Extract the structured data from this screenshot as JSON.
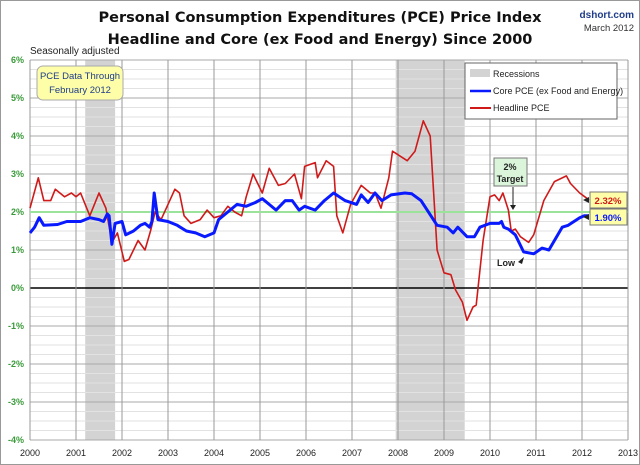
{
  "chart_data": {
    "type": "line",
    "title": "Personal Consumption Expenditures (PCE) Price Index",
    "subtitle": "Headline and Core (ex Food and Energy) Since 2000",
    "source": "dshort.com",
    "date": "March 2012",
    "note": "Seasonally adjusted",
    "data_box": [
      "PCE Data Through",
      "February 2012"
    ],
    "xlim": [
      2000,
      2013
    ],
    "ylim": [
      -4,
      6
    ],
    "x_ticks": [
      "2000",
      "2001",
      "2002",
      "2003",
      "2004",
      "2005",
      "2006",
      "2007",
      "2008",
      "2009",
      "2010",
      "2011",
      "2012",
      "2013"
    ],
    "y_ticks": [
      "6%",
      "5%",
      "4%",
      "3%",
      "2%",
      "1%",
      "0%",
      "-1%",
      "-2%",
      "-3%",
      "-4%"
    ],
    "grid": true,
    "legend_position": "top-right",
    "legend": [
      "Recessions",
      "Core PCE (ex Food and Energy)",
      "Headline PCE"
    ],
    "recessions": [
      [
        2001.2,
        2001.85
      ],
      [
        2007.95,
        2009.45
      ]
    ],
    "target_line": 2,
    "annotations": {
      "target": [
        "2%",
        "Target"
      ],
      "low": "Low",
      "headline_last": "2.32%",
      "core_last": "1.90%"
    },
    "colors": {
      "core": "#0a1aff",
      "headline": "#d01a1a",
      "target": "#9be39b",
      "recession": "#d3d3d3",
      "ytick": "#3a9a3a"
    },
    "series": [
      {
        "name": "Core PCE (ex Food and Energy)",
        "points": [
          [
            2000.0,
            1.45
          ],
          [
            2000.1,
            1.6
          ],
          [
            2000.2,
            1.85
          ],
          [
            2000.3,
            1.65
          ],
          [
            2000.6,
            1.67
          ],
          [
            2000.8,
            1.75
          ],
          [
            2001.1,
            1.75
          ],
          [
            2001.3,
            1.85
          ],
          [
            2001.5,
            1.8
          ],
          [
            2001.6,
            1.75
          ],
          [
            2001.68,
            1.95
          ],
          [
            2001.72,
            1.9
          ],
          [
            2001.78,
            1.15
          ],
          [
            2001.85,
            1.7
          ],
          [
            2002.0,
            1.75
          ],
          [
            2002.08,
            1.4
          ],
          [
            2002.25,
            1.5
          ],
          [
            2002.4,
            1.65
          ],
          [
            2002.5,
            1.7
          ],
          [
            2002.6,
            1.6
          ],
          [
            2002.65,
            1.75
          ],
          [
            2002.7,
            2.5
          ],
          [
            2002.78,
            1.8
          ],
          [
            2003.0,
            1.75
          ],
          [
            2003.2,
            1.65
          ],
          [
            2003.4,
            1.5
          ],
          [
            2003.6,
            1.45
          ],
          [
            2003.8,
            1.35
          ],
          [
            2004.0,
            1.45
          ],
          [
            2004.1,
            1.8
          ],
          [
            2004.3,
            2.0
          ],
          [
            2004.5,
            2.2
          ],
          [
            2004.7,
            2.15
          ],
          [
            2004.9,
            2.25
          ],
          [
            2005.05,
            2.35
          ],
          [
            2005.2,
            2.2
          ],
          [
            2005.35,
            2.05
          ],
          [
            2005.55,
            2.3
          ],
          [
            2005.7,
            2.3
          ],
          [
            2005.85,
            2.05
          ],
          [
            2005.97,
            2.15
          ],
          [
            2006.2,
            2.05
          ],
          [
            2006.4,
            2.3
          ],
          [
            2006.6,
            2.5
          ],
          [
            2006.85,
            2.3
          ],
          [
            2007.1,
            2.2
          ],
          [
            2007.2,
            2.45
          ],
          [
            2007.35,
            2.25
          ],
          [
            2007.5,
            2.5
          ],
          [
            2007.65,
            2.3
          ],
          [
            2007.85,
            2.45
          ],
          [
            2008.15,
            2.5
          ],
          [
            2008.3,
            2.48
          ],
          [
            2008.5,
            2.3
          ],
          [
            2008.85,
            1.65
          ],
          [
            2009.07,
            1.6
          ],
          [
            2009.2,
            1.45
          ],
          [
            2009.3,
            1.6
          ],
          [
            2009.5,
            1.35
          ],
          [
            2009.66,
            1.35
          ],
          [
            2009.78,
            1.6
          ],
          [
            2010.0,
            1.7
          ],
          [
            2010.2,
            1.7
          ],
          [
            2010.25,
            1.75
          ],
          [
            2010.3,
            1.6
          ],
          [
            2010.4,
            1.55
          ],
          [
            2010.55,
            1.4
          ],
          [
            2010.73,
            0.95
          ],
          [
            2010.95,
            0.9
          ],
          [
            2011.13,
            1.05
          ],
          [
            2011.28,
            1.0
          ],
          [
            2011.57,
            1.6
          ],
          [
            2011.7,
            1.65
          ],
          [
            2011.95,
            1.85
          ],
          [
            2012.05,
            1.9
          ],
          [
            2012.15,
            1.9
          ]
        ]
      },
      {
        "name": "Headline PCE",
        "points": [
          [
            2000.0,
            2.1
          ],
          [
            2000.18,
            2.9
          ],
          [
            2000.3,
            2.3
          ],
          [
            2000.45,
            2.3
          ],
          [
            2000.55,
            2.6
          ],
          [
            2000.75,
            2.4
          ],
          [
            2000.9,
            2.5
          ],
          [
            2001.0,
            2.4
          ],
          [
            2001.1,
            2.5
          ],
          [
            2001.3,
            1.9
          ],
          [
            2001.5,
            2.5
          ],
          [
            2001.65,
            2.1
          ],
          [
            2001.78,
            1.2
          ],
          [
            2001.9,
            1.45
          ],
          [
            2002.05,
            0.7
          ],
          [
            2002.15,
            0.75
          ],
          [
            2002.35,
            1.25
          ],
          [
            2002.5,
            1.0
          ],
          [
            2002.62,
            1.5
          ],
          [
            2002.72,
            2.0
          ],
          [
            2002.85,
            1.8
          ],
          [
            2003.0,
            2.2
          ],
          [
            2003.15,
            2.6
          ],
          [
            2003.25,
            2.5
          ],
          [
            2003.35,
            1.9
          ],
          [
            2003.5,
            1.7
          ],
          [
            2003.7,
            1.8
          ],
          [
            2003.85,
            2.05
          ],
          [
            2004.0,
            1.85
          ],
          [
            2004.15,
            1.9
          ],
          [
            2004.3,
            2.15
          ],
          [
            2004.45,
            2.0
          ],
          [
            2004.6,
            1.9
          ],
          [
            2004.7,
            2.4
          ],
          [
            2004.85,
            3.0
          ],
          [
            2005.05,
            2.5
          ],
          [
            2005.2,
            3.15
          ],
          [
            2005.4,
            2.7
          ],
          [
            2005.55,
            2.75
          ],
          [
            2005.75,
            3.0
          ],
          [
            2005.9,
            2.35
          ],
          [
            2005.97,
            3.2
          ],
          [
            2006.2,
            3.3
          ],
          [
            2006.25,
            2.9
          ],
          [
            2006.44,
            3.35
          ],
          [
            2006.6,
            3.2
          ],
          [
            2006.67,
            1.9
          ],
          [
            2006.8,
            1.45
          ],
          [
            2006.97,
            2.2
          ],
          [
            2007.2,
            2.7
          ],
          [
            2007.4,
            2.5
          ],
          [
            2007.5,
            2.5
          ],
          [
            2007.63,
            2.1
          ],
          [
            2007.8,
            2.9
          ],
          [
            2007.88,
            3.6
          ],
          [
            2008.2,
            3.35
          ],
          [
            2008.37,
            3.6
          ],
          [
            2008.55,
            4.4
          ],
          [
            2008.7,
            4.0
          ],
          [
            2008.85,
            1.0
          ],
          [
            2009.0,
            0.4
          ],
          [
            2009.15,
            0.35
          ],
          [
            2009.25,
            -0.05
          ],
          [
            2009.4,
            -0.37
          ],
          [
            2009.5,
            -0.85
          ],
          [
            2009.63,
            -0.5
          ],
          [
            2009.7,
            -0.45
          ],
          [
            2009.85,
            1.25
          ],
          [
            2010.0,
            2.4
          ],
          [
            2010.1,
            2.45
          ],
          [
            2010.2,
            2.3
          ],
          [
            2010.28,
            2.5
          ],
          [
            2010.4,
            2.05
          ],
          [
            2010.46,
            1.5
          ],
          [
            2010.55,
            1.55
          ],
          [
            2010.66,
            1.35
          ],
          [
            2010.84,
            1.2
          ],
          [
            2010.95,
            1.4
          ],
          [
            2011.17,
            2.3
          ],
          [
            2011.4,
            2.8
          ],
          [
            2011.66,
            2.95
          ],
          [
            2011.75,
            2.75
          ],
          [
            2011.95,
            2.5
          ],
          [
            2012.15,
            2.32
          ]
        ]
      }
    ]
  }
}
